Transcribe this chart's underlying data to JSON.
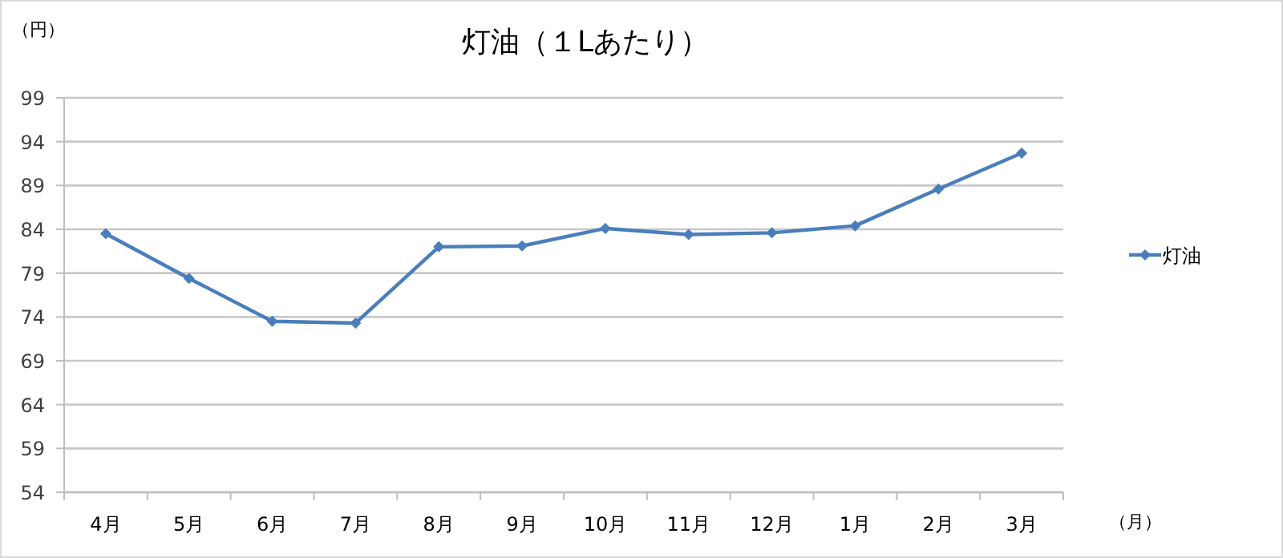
{
  "chart_data": {
    "type": "line",
    "title": "灯油（１Lあたり）",
    "ylabel": "（円）",
    "xlabel": "（月）",
    "categories": [
      "4月",
      "5月",
      "6月",
      "7月",
      "8月",
      "9月",
      "10月",
      "11月",
      "12月",
      "1月",
      "2月",
      "3月"
    ],
    "series": [
      {
        "name": "灯油",
        "color": "#4a7ebb",
        "values": [
          83.5,
          78.4,
          73.5,
          73.3,
          82.0,
          82.1,
          84.1,
          83.4,
          83.6,
          84.4,
          88.6,
          92.7
        ]
      }
    ],
    "ylim": [
      54,
      99
    ],
    "yticks": [
      54,
      59,
      64,
      69,
      74,
      79,
      84,
      89,
      94,
      99
    ],
    "grid": "y",
    "legend": "right",
    "marker": "diamond"
  }
}
